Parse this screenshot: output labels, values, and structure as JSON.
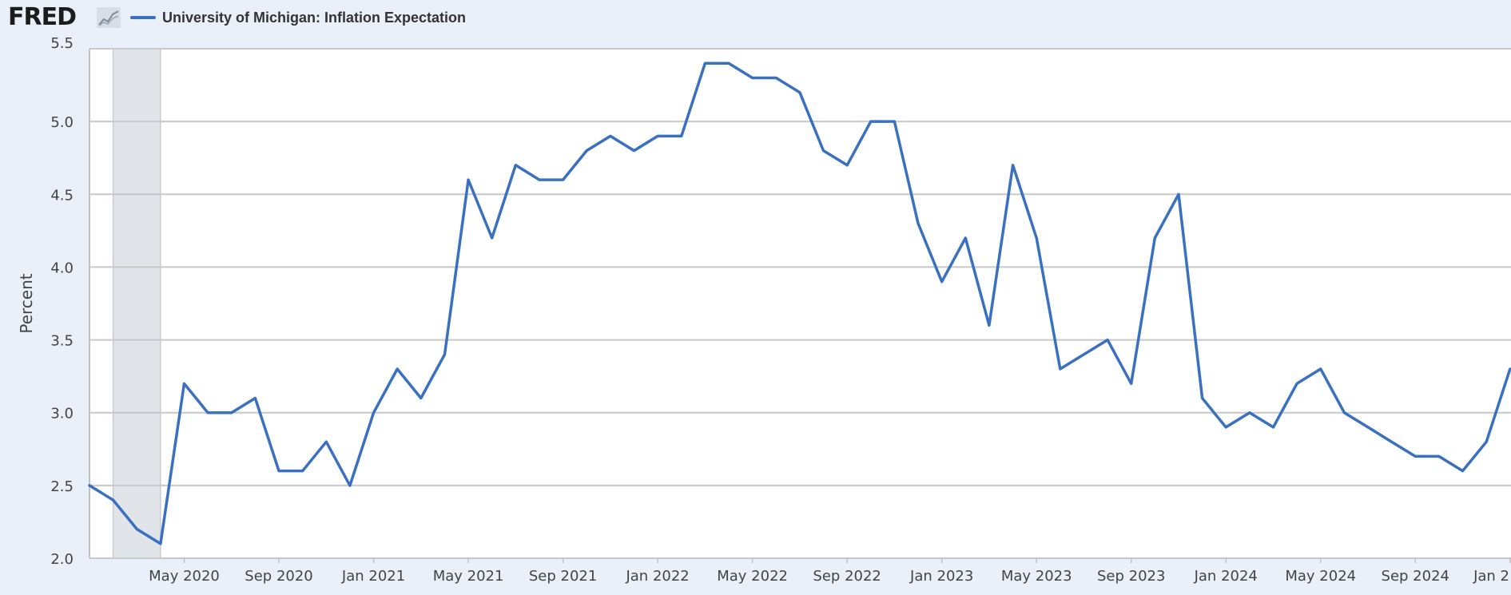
{
  "header": {
    "logo_text": "FRED",
    "logo_icon": "line-chart-icon"
  },
  "chart_data": {
    "type": "line",
    "title": "",
    "xlabel": "",
    "ylabel": "Percent",
    "ylim": [
      2.0,
      5.5
    ],
    "yticks": [
      "2.0",
      "2.5",
      "3.0",
      "3.5",
      "4.0",
      "4.5",
      "5.0",
      "5.5"
    ],
    "xtick_labels": [
      "May 2020",
      "Sep 2020",
      "Jan 2021",
      "May 2021",
      "Sep 2021",
      "Jan 2022",
      "May 2022",
      "Sep 2022",
      "Jan 2023",
      "May 2023",
      "Sep 2023",
      "Jan 2024",
      "May 2024",
      "Sep 2024",
      "Jan 2"
    ],
    "grid": true,
    "legend_position": "top-left",
    "recession_shading": {
      "start": "2020-02",
      "end": "2020-04"
    },
    "series": [
      {
        "name": "University of Michigan: Inflation Expectation",
        "color": "#3a70c0",
        "x": [
          "2020-01",
          "2020-02",
          "2020-03",
          "2020-04",
          "2020-05",
          "2020-06",
          "2020-07",
          "2020-08",
          "2020-09",
          "2020-10",
          "2020-11",
          "2020-12",
          "2021-01",
          "2021-02",
          "2021-03",
          "2021-04",
          "2021-05",
          "2021-06",
          "2021-07",
          "2021-08",
          "2021-09",
          "2021-10",
          "2021-11",
          "2021-12",
          "2022-01",
          "2022-02",
          "2022-03",
          "2022-04",
          "2022-05",
          "2022-06",
          "2022-07",
          "2022-08",
          "2022-09",
          "2022-10",
          "2022-11",
          "2022-12",
          "2023-01",
          "2023-02",
          "2023-03",
          "2023-04",
          "2023-05",
          "2023-06",
          "2023-07",
          "2023-08",
          "2023-09",
          "2023-10",
          "2023-11",
          "2023-12",
          "2024-01",
          "2024-02",
          "2024-03",
          "2024-04",
          "2024-05",
          "2024-06",
          "2024-07",
          "2024-08",
          "2024-09",
          "2024-10",
          "2024-11",
          "2024-12",
          "2025-01"
        ],
        "values": [
          2.5,
          2.4,
          2.2,
          2.1,
          3.2,
          3.0,
          3.0,
          3.1,
          2.6,
          2.6,
          2.8,
          2.5,
          3.0,
          3.3,
          3.1,
          3.4,
          4.6,
          4.2,
          4.7,
          4.6,
          4.6,
          4.8,
          4.9,
          4.8,
          4.9,
          4.9,
          5.4,
          5.4,
          5.3,
          5.3,
          5.2,
          4.8,
          4.7,
          5.0,
          5.0,
          4.3,
          3.9,
          4.2,
          3.6,
          4.7,
          4.2,
          3.3,
          3.4,
          3.5,
          3.2,
          4.2,
          4.5,
          3.1,
          2.9,
          3.0,
          2.9,
          3.2,
          3.3,
          3.0,
          2.9,
          2.8,
          2.7,
          2.7,
          2.6,
          2.8,
          3.3
        ]
      }
    ]
  }
}
